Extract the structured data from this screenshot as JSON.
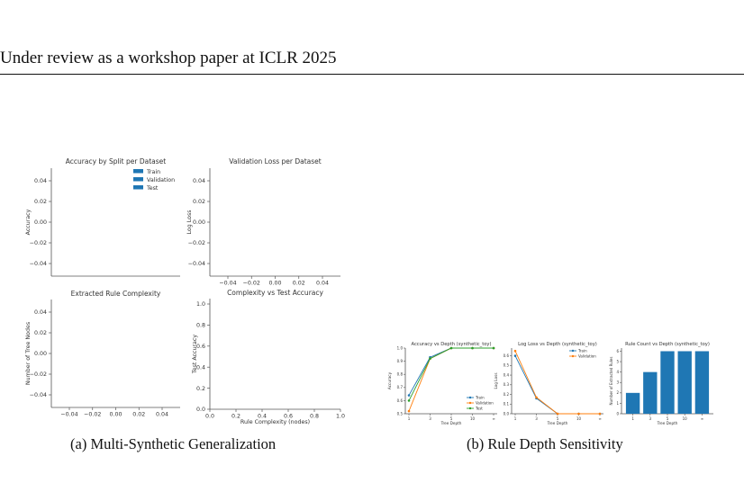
{
  "header": {
    "text": "Under review as a workshop paper at ICLR 2025"
  },
  "captions": {
    "a": "(a) Multi-Synthetic Generalization",
    "b": "(b) Rule Depth Sensitivity"
  },
  "chart_data": [
    {
      "type": "bar",
      "title": "Accuracy by Split per Dataset",
      "xlabel": "",
      "ylabel": "Accuracy",
      "yticks": [
        "0.04",
        "0.02",
        "0.00",
        "−0.02",
        "−0.04"
      ],
      "ylim": [
        -0.05,
        0.05
      ],
      "legend": [
        "Train",
        "Validation",
        "Test"
      ],
      "legend_position": "top-right",
      "series": [],
      "colors": {
        "legend": "#1f77b4"
      }
    },
    {
      "type": "line",
      "title": "Validation Loss per Dataset",
      "xlabel": "",
      "ylabel": "Log Loss",
      "xticks": [
        "−0.04",
        "−0.02",
        "0.00",
        "0.02",
        "0.04"
      ],
      "yticks": [
        "0.04",
        "0.02",
        "0.00",
        "−0.02",
        "−0.04"
      ],
      "series": []
    },
    {
      "type": "bar",
      "title": "Extracted Rule Complexity",
      "xlabel": "",
      "ylabel": "Number of Tree Nodes",
      "xticks": [
        "−0.04",
        "−0.02",
        "0.00",
        "0.02",
        "0.04"
      ],
      "yticks": [
        "0.04",
        "0.02",
        "0.00",
        "−0.02",
        "−0.04"
      ],
      "series": []
    },
    {
      "type": "scatter",
      "title": "Complexity vs Test Accuracy",
      "xlabel": "Rule Complexity (nodes)",
      "ylabel": "Test Accuracy",
      "xticks": [
        "0.0",
        "0.2",
        "0.4",
        "0.6",
        "0.8",
        "1.0"
      ],
      "yticks": [
        "1.0",
        "0.8",
        "0.6",
        "0.4",
        "0.2",
        "0.0"
      ],
      "xlim": [
        0,
        1
      ],
      "ylim": [
        0,
        1
      ],
      "series": []
    },
    {
      "type": "line",
      "title": "Accuracy vs Depth (synthetic_toy)",
      "xlabel": "Tree Depth",
      "ylabel": "Accuracy",
      "categories": [
        "1",
        "3",
        "5",
        "10",
        "∞"
      ],
      "yticks": [
        "1.0",
        "0.9",
        "0.8",
        "0.7",
        "0.6",
        "0.5"
      ],
      "ylim": [
        0.5,
        1.0
      ],
      "series": [
        {
          "name": "Train",
          "values": [
            0.64,
            0.93,
            1.0,
            1.0,
            1.0
          ],
          "color": "#1f77b4"
        },
        {
          "name": "Validation",
          "values": [
            0.52,
            0.92,
            1.0,
            1.0,
            1.0
          ],
          "color": "#ff7f0e"
        },
        {
          "name": "Test",
          "values": [
            0.6,
            0.92,
            1.0,
            1.0,
            1.0
          ],
          "color": "#2ca02c"
        }
      ],
      "legend_position": "lower-right"
    },
    {
      "type": "line",
      "title": "Log Loss vs Depth (synthetic_toy)",
      "xlabel": "Tree Depth",
      "ylabel": "Log Loss",
      "categories": [
        "1",
        "3",
        "5",
        "10",
        "∞"
      ],
      "yticks": [
        "0.6",
        "0.5",
        "0.4",
        "0.3",
        "0.2",
        "0.1",
        "0.0"
      ],
      "ylim": [
        0,
        0.68
      ],
      "series": [
        {
          "name": "Train",
          "values": [
            0.6,
            0.16,
            0.0,
            0.0,
            0.0
          ],
          "color": "#1f77b4"
        },
        {
          "name": "Validation",
          "values": [
            0.65,
            0.17,
            0.0,
            0.0,
            0.0
          ],
          "color": "#ff7f0e"
        }
      ],
      "legend_position": "top-right"
    },
    {
      "type": "bar",
      "title": "Rule Count vs Depth (synthetic_toy)",
      "xlabel": "Tree Depth",
      "ylabel": "Number of Extracted Rules",
      "categories": [
        "1",
        "3",
        "5",
        "10",
        "∞"
      ],
      "values": [
        2,
        4,
        6,
        6,
        6
      ],
      "yticks": [
        "6",
        "5",
        "4",
        "3",
        "2",
        "1",
        "0"
      ],
      "ylim": [
        0,
        6.3
      ],
      "color": "#1f77b4"
    }
  ]
}
